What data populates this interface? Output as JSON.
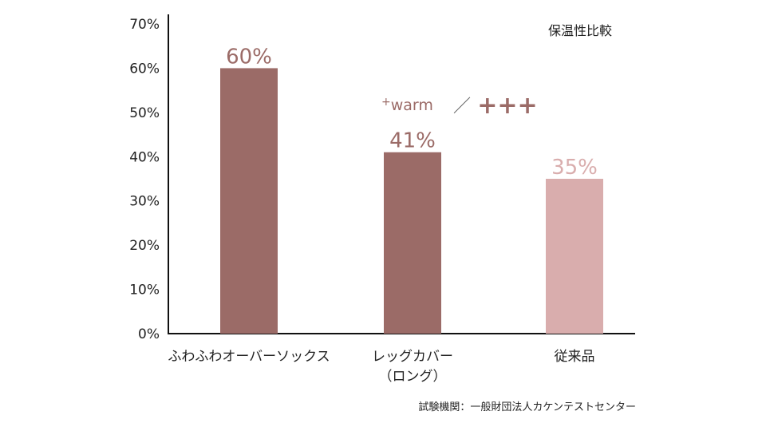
{
  "chart_data": {
    "type": "bar",
    "title": "保温性比較",
    "categories": [
      [
        "ふわふわオーバーソックス"
      ],
      [
        "レッグカバー",
        "（ロング）"
      ],
      [
        "従来品"
      ]
    ],
    "values": [
      60,
      41,
      35
    ],
    "data_labels": [
      "60%",
      "41%",
      "35%"
    ],
    "bar_colors": [
      "#9b6b67",
      "#9b6b67",
      "#d9adad"
    ],
    "label_colors": [
      "#9b6b67",
      "#9b6b67",
      "#d9adad"
    ],
    "ylim": [
      0,
      70
    ],
    "yticks": [
      0,
      10,
      20,
      30,
      40,
      50,
      60,
      70
    ],
    "ytick_labels": [
      "0%",
      "10%",
      "20%",
      "30%",
      "40%",
      "50%",
      "60%",
      "70%"
    ],
    "xlabel": "",
    "ylabel": "",
    "grid": false,
    "legend_position": "top-right",
    "annotation": {
      "brand_prefix": "+",
      "brand_text": "warm",
      "separator": "／",
      "plus_marks": "+++",
      "color": "#9b6b67"
    },
    "source": "試験機関：一般財団法人カケンテストセンター"
  }
}
